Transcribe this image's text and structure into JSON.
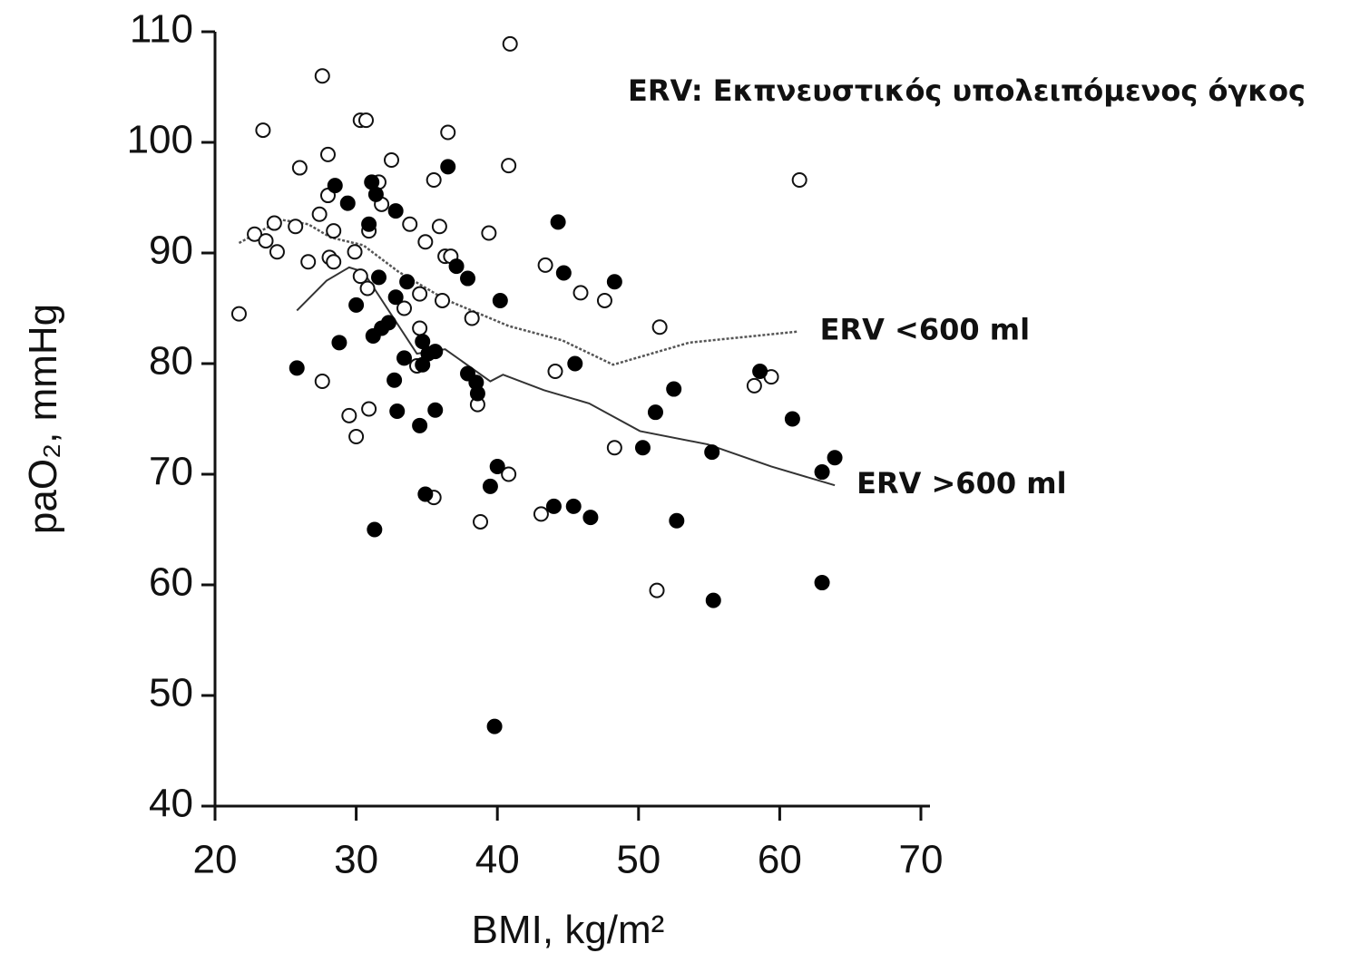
{
  "chart_data": {
    "type": "scatter",
    "title": "ERV: Εκπνευστικός υπολειπόμενος όγκος",
    "x_label": "BMI, kg/m²",
    "y_label": "paO₂, mmHg",
    "xlim": [
      20,
      70
    ],
    "xticks": [
      20,
      30,
      40,
      50,
      60,
      70
    ],
    "ylim": [
      40,
      110
    ],
    "yticks": [
      40,
      50,
      60,
      70,
      80,
      90,
      100,
      110
    ],
    "grid": false,
    "series": [
      {
        "marker": "open",
        "color": "#111111",
        "x": [
          21.7,
          22.8,
          23.4,
          23.6,
          24.2,
          24.4,
          25.7,
          26.0,
          26.6,
          27.4,
          27.6,
          27.6,
          28.0,
          28.0,
          28.1,
          28.4,
          28.4,
          29.5,
          29.9,
          30.0,
          30.3,
          30.7,
          30.3,
          30.8,
          30.9,
          30.9,
          31.6,
          31.8,
          32.5,
          33.4,
          33.8,
          34.5,
          34.5,
          34.3,
          34.9,
          35.5,
          35.5,
          35.9,
          36.1,
          36.3,
          36.5,
          36.7,
          38.2,
          38.6,
          38.8,
          39.4,
          40.8,
          40.9,
          40.8,
          43.4,
          43.1,
          44.1,
          45.9,
          47.6,
          48.3,
          51.3,
          51.5,
          58.2,
          59.4,
          61.4
        ],
        "values": [
          84.5,
          91.7,
          101.1,
          91.1,
          92.7,
          90.1,
          92.4,
          97.7,
          89.2,
          93.5,
          106,
          78.4,
          98.9,
          95.2,
          89.6,
          92.0,
          89.2,
          75.3,
          90.1,
          73.4,
          102,
          102,
          87.9,
          86.8,
          75.9,
          92.0,
          96.4,
          94.4,
          98.4,
          85.0,
          92.6,
          86.3,
          83.2,
          79.8,
          91.0,
          96.6,
          67.9,
          92.4,
          85.7,
          89.7,
          100.9,
          89.7,
          84.1,
          76.3,
          65.7,
          91.8,
          70.0,
          108.9,
          97.9,
          88.9,
          66.4,
          79.3,
          86.4,
          85.7,
          72.4,
          59.5,
          83.3,
          78.0,
          78.8,
          96.6
        ]
      },
      {
        "marker": "filled",
        "color": "#000000",
        "x": [
          25.8,
          28.5,
          28.8,
          29.4,
          30.0,
          30.9,
          31.1,
          31.2,
          31.4,
          31.3,
          31.6,
          31.8,
          32.3,
          32.7,
          32.8,
          32.8,
          32.9,
          33.4,
          33.6,
          34.7,
          34.5,
          34.7,
          34.9,
          35.1,
          35.6,
          35.6,
          36.5,
          37.1,
          37.9,
          37.9,
          38.5,
          38.6,
          39.5,
          40.0,
          39.8,
          40.2,
          44.0,
          44.3,
          44.7,
          45.4,
          45.5,
          46.6,
          48.3,
          50.3,
          51.2,
          52.5,
          52.7,
          55.2,
          55.3,
          58.6,
          60.9,
          63.0,
          63.0,
          63.9
        ],
        "values": [
          79.6,
          96.1,
          81.9,
          94.5,
          85.3,
          92.6,
          96.4,
          82.5,
          95.3,
          65.0,
          87.8,
          83.2,
          83.7,
          78.5,
          86.0,
          93.8,
          75.7,
          80.5,
          87.4,
          79.9,
          74.4,
          82.0,
          68.2,
          80.9,
          75.8,
          81.1,
          97.8,
          88.8,
          87.7,
          79.1,
          78.3,
          77.3,
          68.9,
          70.7,
          47.2,
          85.7,
          67.1,
          92.8,
          88.2,
          67.1,
          80.0,
          66.1,
          87.4,
          72.4,
          75.6,
          77.7,
          65.8,
          72.0,
          58.6,
          79.3,
          75.0,
          60.2,
          70.2,
          71.5
        ]
      }
    ],
    "lines": [
      {
        "name": "ERV <600 ml",
        "color": "#555555",
        "dashed": true,
        "x": [
          21.7,
          24.7,
          26.6,
          28.2,
          30.5,
          33.0,
          36.3,
          40.8,
          44.6,
          48.2,
          53.6,
          61.3
        ],
        "values": [
          90.9,
          93.0,
          92.6,
          91.4,
          90.7,
          88.3,
          85.8,
          83.4,
          82.1,
          79.9,
          81.9,
          82.9
        ]
      },
      {
        "name": "ERV >600 ml",
        "color": "#333333",
        "dashed": false,
        "x": [
          25.8,
          27.9,
          29.5,
          30.5,
          32.4,
          34.3,
          36.3,
          39.5,
          40.4,
          43.3,
          46.5,
          50.1,
          54.9,
          59.4,
          63.9
        ],
        "values": [
          84.8,
          87.5,
          88.7,
          88.3,
          84.6,
          80.9,
          81.3,
          78.4,
          79.0,
          77.6,
          76.4,
          73.9,
          72.7,
          70.7,
          69.0
        ]
      }
    ]
  }
}
